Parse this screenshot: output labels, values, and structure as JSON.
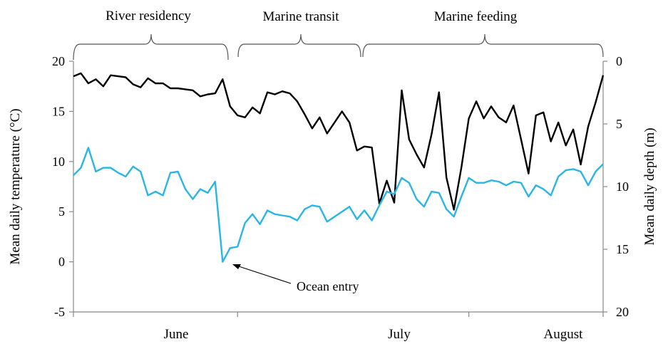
{
  "chart_data": {
    "type": "line",
    "x_axis": {
      "month_labels": [
        "June",
        "July",
        "August"
      ],
      "month_boundary_day_index": [
        22,
        53
      ]
    },
    "y_left": {
      "label": "Mean daily temperature (°C)",
      "range": [
        -5,
        20
      ],
      "ticks": [
        "20",
        "15",
        "10",
        "5",
        "0",
        "-5"
      ]
    },
    "y_right": {
      "label": "Mean daily depth (m)",
      "range": [
        0,
        20
      ],
      "inverted": true,
      "ticks": [
        "0",
        "5",
        "10",
        "15",
        "20"
      ]
    },
    "phases": [
      {
        "label": "River residency",
        "start_day": 0,
        "end_day": 21
      },
      {
        "label": "Marine transit",
        "start_day": 23,
        "end_day": 40
      },
      {
        "label": "Marine feeding",
        "start_day": 41,
        "end_day": 73
      }
    ],
    "annotation": {
      "text": "Ocean entry",
      "day": 21,
      "value": -0.3
    },
    "series": [
      {
        "axis": "left",
        "color": "#000000",
        "values": [
          18.5,
          18.8,
          17.8,
          18.2,
          17.5,
          18.6,
          18.5,
          18.4,
          17.7,
          17.4,
          18.3,
          17.8,
          17.8,
          17.3,
          17.3,
          17.2,
          17.1,
          16.5,
          16.7,
          16.8,
          18.2,
          15.5,
          14.6,
          14.4,
          15.4,
          14.8,
          16.9,
          16.7,
          17.0,
          16.8,
          16.0,
          14.7,
          13.3,
          14.4,
          12.8,
          13.9,
          15.0,
          13.9,
          11.1,
          11.5,
          11.4,
          5.8,
          8.1,
          5.9,
          17.1,
          12.2,
          10.7,
          9.4,
          12.7,
          16.9,
          8.4,
          5.2,
          9.4,
          14.3,
          16.0,
          14.3,
          15.5,
          14.4,
          13.9,
          15.6,
          12.2,
          8.8,
          14.6,
          14.9,
          12.0,
          13.9,
          11.6,
          13.2,
          9.7,
          13.5,
          15.9,
          18.6
        ]
      },
      {
        "axis": "right",
        "color": "#29b6e6",
        "values": [
          9.1,
          8.5,
          6.9,
          8.8,
          8.5,
          8.5,
          8.9,
          9.2,
          8.4,
          8.8,
          10.7,
          10.4,
          10.7,
          8.9,
          8.8,
          10.2,
          11.0,
          10.2,
          10.5,
          9.6,
          16.0,
          14.9,
          14.8,
          12.9,
          12.2,
          13.0,
          11.9,
          12.2,
          12.3,
          12.4,
          12.7,
          11.8,
          11.5,
          11.6,
          12.8,
          12.4,
          12.0,
          11.6,
          12.6,
          11.9,
          12.7,
          11.5,
          10.4,
          10.6,
          9.3,
          9.7,
          11.0,
          11.6,
          10.4,
          10.5,
          11.8,
          12.4,
          10.8,
          9.3,
          9.7,
          9.7,
          9.5,
          9.6,
          9.9,
          9.6,
          9.7,
          10.8,
          9.9,
          10.2,
          10.7,
          9.2,
          8.7,
          8.6,
          8.8,
          9.9,
          8.8,
          8.2
        ]
      }
    ]
  }
}
